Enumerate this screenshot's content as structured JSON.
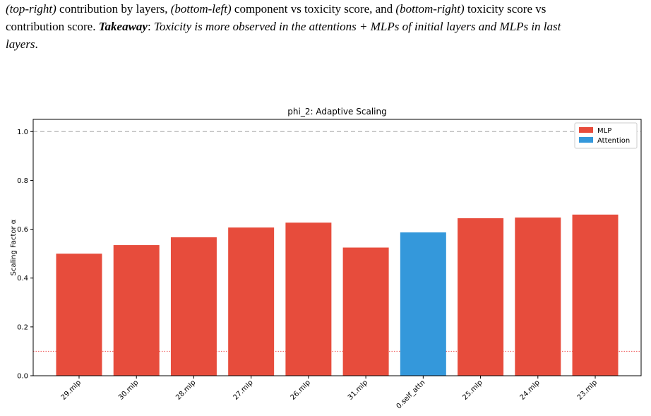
{
  "caption": {
    "line1_a": "(top-right)",
    "line1_b": " contribution by layers, ",
    "line1_c": "(bottom-left)",
    "line1_d": " component vs toxicity score, and ",
    "line1_e": "(bottom-right)",
    "line1_f": " toxicity score vs",
    "line2_a": "contribution score. ",
    "line2_b": "Takeaway",
    "line2_c": ": ",
    "line2_d": "Toxicity is more observed in the attentions + MLPs of initial layers and MLPs in last",
    "line3": "layers",
    "line3_end": "."
  },
  "chart_data": {
    "type": "bar",
    "title": "phi_2: Adaptive Scaling",
    "xlabel": "",
    "ylabel": "Scaling Factor α",
    "ylim": [
      0,
      1.05
    ],
    "yticks": [
      0.0,
      0.2,
      0.4,
      0.6,
      0.8,
      1.0
    ],
    "ytick_labels": [
      "0.0",
      "0.2",
      "0.4",
      "0.6",
      "0.8",
      "1.0"
    ],
    "categories": [
      "29.mlp",
      "30.mlp",
      "28.mlp",
      "27.mlp",
      "26.mlp",
      "31.mlp",
      "0.self_attn",
      "25.mlp",
      "24.mlp",
      "23.mlp"
    ],
    "values": [
      0.5,
      0.535,
      0.567,
      0.607,
      0.627,
      0.525,
      0.587,
      0.645,
      0.648,
      0.66
    ],
    "component_types": [
      "MLP",
      "MLP",
      "MLP",
      "MLP",
      "MLP",
      "MLP",
      "Attention",
      "MLP",
      "MLP",
      "MLP"
    ],
    "legend": [
      {
        "name": "MLP",
        "color": "#e74c3c"
      },
      {
        "name": "Attention",
        "color": "#3498db"
      }
    ],
    "legend_position": "top-right",
    "reference_lines": [
      {
        "y": 1.0,
        "style": "dashed",
        "color": "#aaaaaa"
      },
      {
        "y": 0.1,
        "style": "dotted",
        "color": "#ee5555"
      }
    ],
    "grid": false
  }
}
